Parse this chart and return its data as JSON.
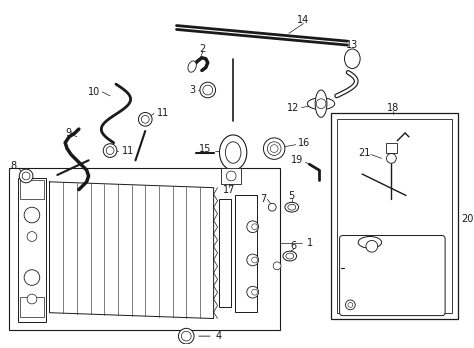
{
  "bg_color": "#ffffff",
  "line_color": "#1a1a1a",
  "fig_width": 4.74,
  "fig_height": 3.48,
  "dpi": 100
}
